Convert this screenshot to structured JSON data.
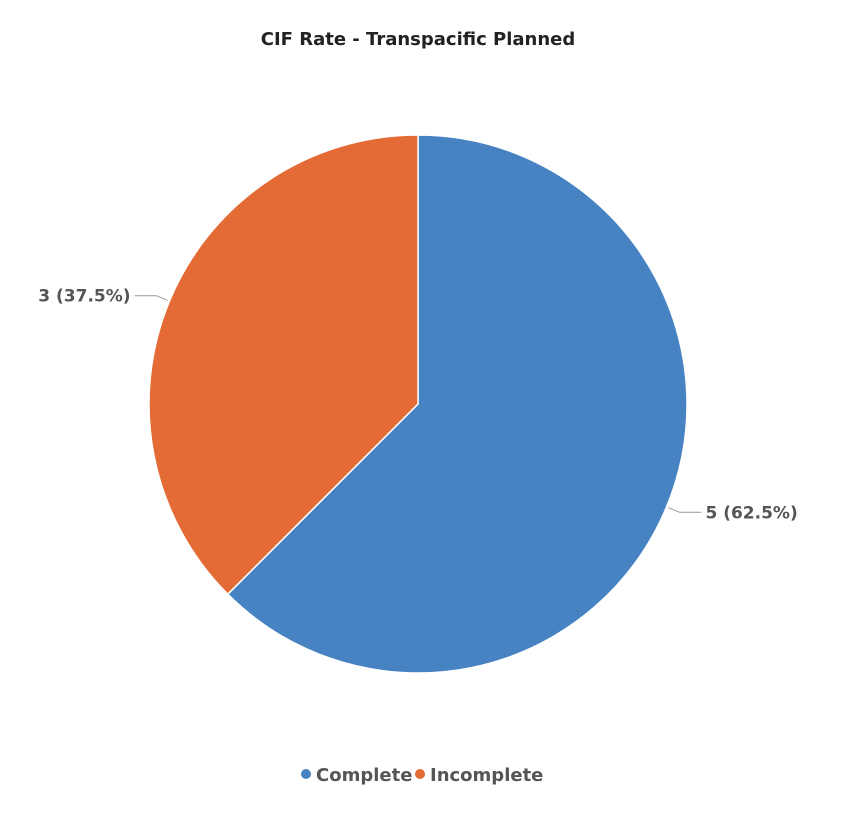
{
  "chart_data": {
    "type": "pie",
    "title": "CIF Rate  - Transpacific Planned",
    "slices": [
      {
        "name": "Complete",
        "value": 5,
        "percent": 62.5,
        "label": "5 (62.5%)",
        "color": "#4782C3"
      },
      {
        "name": "Incomplete",
        "value": 3,
        "percent": 37.5,
        "label": "3 (37.5%)",
        "color": "#E46B35"
      }
    ],
    "legend": {
      "placement": "bottom",
      "items": [
        {
          "name": "Complete",
          "color": "#4782C3"
        },
        {
          "name": "Incomplete",
          "color": "#E46B35"
        }
      ]
    },
    "start_angle": "12 o'clock",
    "direction": "clockwise"
  }
}
